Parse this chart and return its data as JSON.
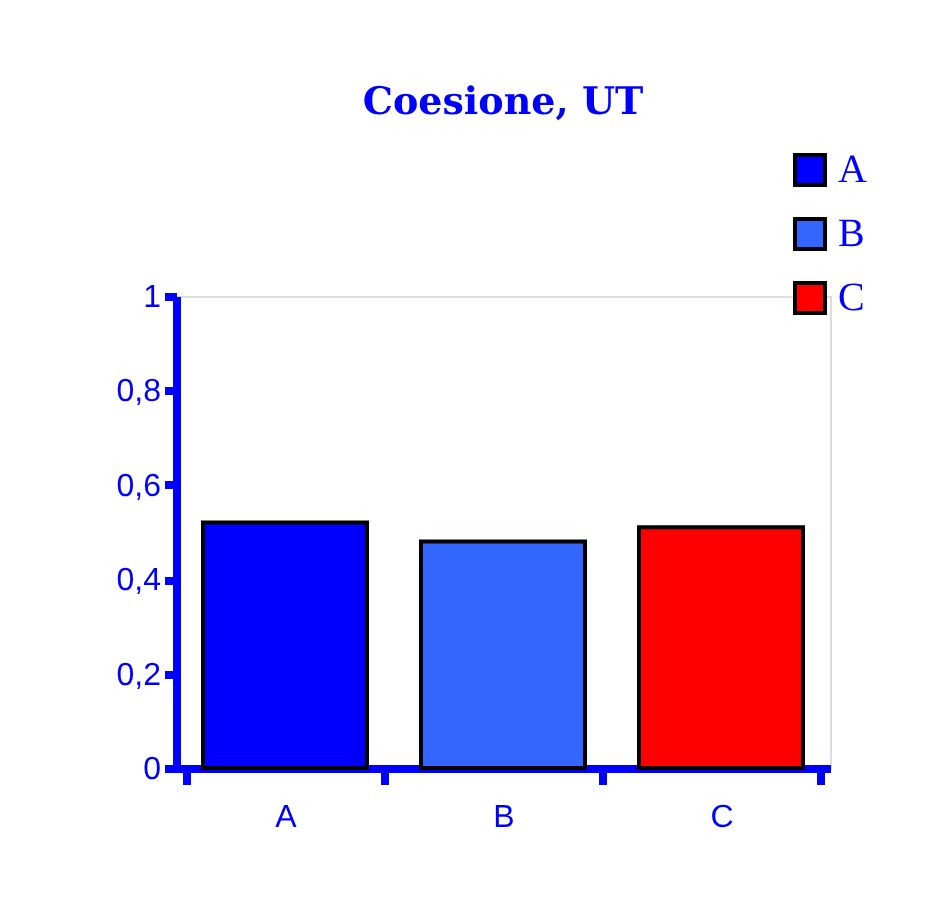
{
  "chart_data": {
    "type": "bar",
    "title": "Coesione, UT",
    "categories": [
      "A",
      "B",
      "C"
    ],
    "series": [
      {
        "name": "A",
        "color": "#0000ff",
        "values": [
          0.52,
          null,
          null
        ]
      },
      {
        "name": "B",
        "color": "#3366ff",
        "values": [
          null,
          0.48,
          null
        ]
      },
      {
        "name": "C",
        "color": "#ff0000",
        "values": [
          null,
          null,
          0.51
        ]
      }
    ],
    "ylim": [
      0,
      1
    ],
    "yticks": [
      0,
      {
        "value": 0.2,
        "label": "0,2"
      },
      {
        "value": 0.4,
        "label": "0,4"
      },
      {
        "value": 0.6,
        "label": "0,6"
      },
      {
        "value": 0.8,
        "label": "0,8"
      },
      1
    ],
    "grid": false,
    "legend": "top right"
  }
}
